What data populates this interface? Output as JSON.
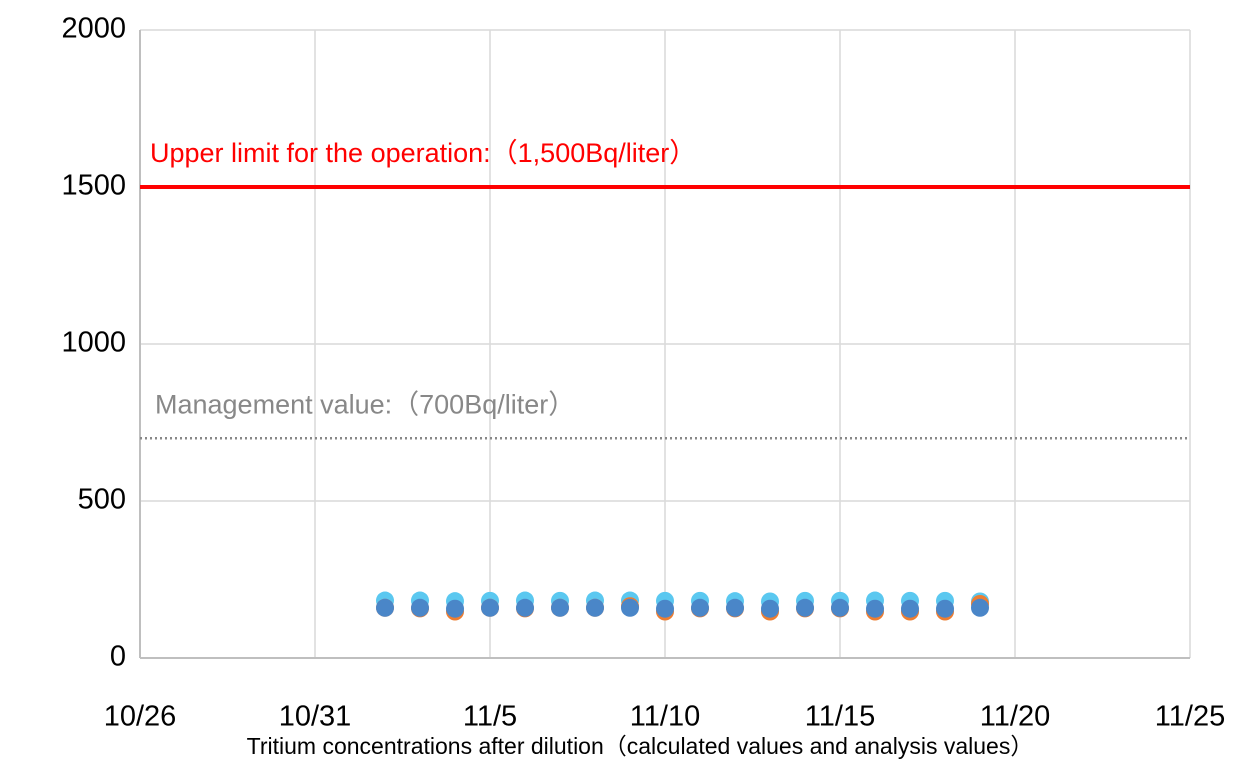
{
  "chart_data": {
    "type": "scatter",
    "x_label": "Tritium concentrations after dilution（calculated values and analysis values）",
    "x": [
      "11/2",
      "11/3",
      "11/4",
      "11/5",
      "11/6",
      "11/7",
      "11/8",
      "11/9",
      "11/10",
      "11/11",
      "11/12",
      "11/13",
      "11/14",
      "11/15",
      "11/16",
      "11/17",
      "11/18",
      "11/19"
    ],
    "series": [
      {
        "color": "#5bc8f0",
        "values": [
          183,
          183,
          181,
          182,
          183,
          182,
          183,
          183,
          182,
          182,
          181,
          180,
          182,
          182,
          183,
          182,
          182,
          180
        ]
      },
      {
        "color": "#ed7d31",
        "values": [
          160,
          158,
          148,
          160,
          158,
          160,
          160,
          165,
          148,
          158,
          158,
          148,
          158,
          158,
          148,
          148,
          148,
          172
        ]
      },
      {
        "color": "#4a86c8",
        "values": [
          160,
          160,
          157,
          160,
          160,
          160,
          160,
          160,
          157,
          160,
          160,
          157,
          160,
          160,
          157,
          157,
          157,
          160
        ]
      }
    ],
    "xlim": [
      "10/26",
      "11/25"
    ],
    "xticks": [
      "10/26",
      "10/31",
      "11/5",
      "11/10",
      "11/15",
      "11/20",
      "11/25"
    ],
    "ylim": [
      0,
      2000
    ],
    "yticks": [
      0,
      500,
      1000,
      1500,
      2000
    ],
    "grid": true,
    "reference_lines": [
      {
        "value": 1500,
        "label": "Upper limit for the operation:（1,500Bq/liter）",
        "color": "#ff0000",
        "style": "solid"
      },
      {
        "value": 700,
        "label": "Management value:（700Bq/liter）",
        "color": "#888888",
        "style": "dotted"
      }
    ]
  }
}
